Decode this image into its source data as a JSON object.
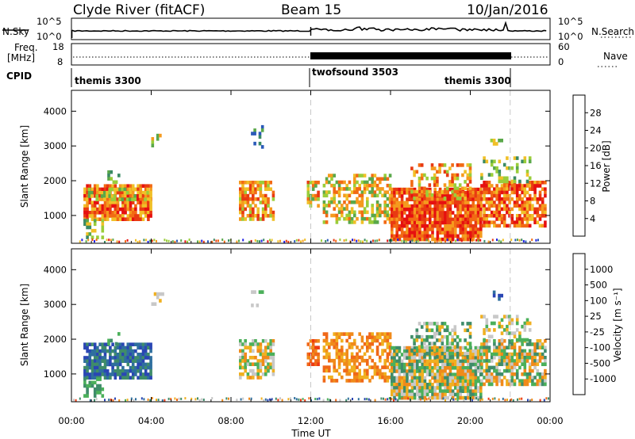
{
  "header": {
    "station": "Clyde River (fitACF)",
    "beam": "Beam 15",
    "date": "10/Jan/2016"
  },
  "summary": {
    "nsky_label": "N.Sky",
    "nsearch_label": "N.Search",
    "nsky_ticks": [
      "10^5",
      "10^0"
    ],
    "nsearch_ticks": [
      "10^5",
      "10^0"
    ],
    "freq_label_top": "Freq.",
    "freq_label_bottom": "[MHz]",
    "freq_ticks": [
      "18",
      "8"
    ],
    "nave_label": "Nave",
    "nave_ticks": [
      "60",
      "0"
    ],
    "cpid_label": "CPID",
    "cpid_segments": [
      {
        "name": "themis 3300",
        "start_hour": 0,
        "end_hour": 12
      },
      {
        "name": "twofsound 3503",
        "start_hour": 12,
        "end_hour": 22
      },
      {
        "name": "themis 3300",
        "start_hour": 22,
        "end_hour": 24
      }
    ]
  },
  "chart_data": [
    {
      "type": "heatmap",
      "panel": "power",
      "ylabel": "Slant Range [km]",
      "yticks": [
        1000,
        2000,
        3000,
        4000
      ],
      "ylim": [
        200,
        4600
      ],
      "xlim_hours": [
        0,
        24
      ],
      "mode_change_hours": [
        12,
        22
      ],
      "colorbar": {
        "label": "Power [dB]",
        "ticks": [
          4,
          8,
          12,
          16,
          20,
          24,
          28
        ],
        "colors": [
          "#1f1fe6",
          "#2a5ab8",
          "#3a8a64",
          "#5aa84a",
          "#9acd3a",
          "#f0c028",
          "#f59a1e",
          "#f26a14",
          "#e83a12",
          "#e61010"
        ]
      }
    },
    {
      "type": "heatmap",
      "panel": "velocity",
      "ylabel": "Slant Range [km]",
      "yticks": [
        1000,
        2000,
        3000,
        4000
      ],
      "ylim": [
        200,
        4600
      ],
      "xlim_hours": [
        0,
        24
      ],
      "mode_change_hours": [
        12,
        22
      ],
      "colorbar": {
        "label": "Velocity [m s⁻¹]",
        "ticks": [
          1000,
          500,
          100,
          25,
          -25,
          -100,
          -500,
          -1000
        ],
        "colors": [
          "#2a46b4",
          "#2f6f9e",
          "#3f8c6a",
          "#4bb05a",
          "#c8c8c8",
          "#f0b020",
          "#f08a1a",
          "#f06818",
          "#ee3a12"
        ]
      }
    }
  ],
  "xaxis": {
    "label": "Time UT",
    "ticks": [
      "00:00",
      "04:00",
      "08:00",
      "12:00",
      "16:00",
      "20:00",
      "00:00"
    ]
  }
}
